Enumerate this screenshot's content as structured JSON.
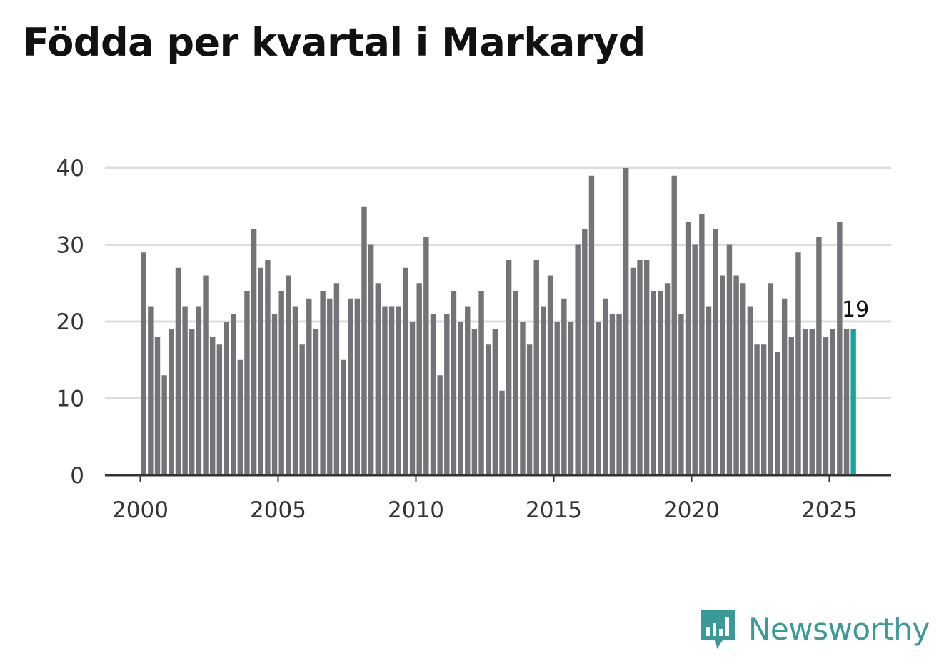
{
  "title": "Födda per kvartal i Markaryd",
  "brand": {
    "name": "Newsworthy",
    "icon": "bar-chart-speech-bubble-icon",
    "color": "#3a9a97"
  },
  "colors": {
    "bar": "#747378",
    "highlight": "#1aa39b",
    "grid": "#dddddd",
    "axis": "#333333"
  },
  "chart_data": {
    "type": "bar",
    "title": "Födda per kvartal i Markaryd",
    "xlabel": "",
    "ylabel": "",
    "ylim": [
      0,
      40
    ],
    "yticks": [
      0,
      10,
      20,
      30,
      40
    ],
    "xticks": [
      2000,
      2005,
      2010,
      2015,
      2020,
      2025
    ],
    "x_start": 2000,
    "periods_per_year": 4,
    "grid": true,
    "values": [
      29,
      22,
      18,
      13,
      19,
      27,
      22,
      19,
      22,
      26,
      18,
      17,
      20,
      21,
      15,
      24,
      32,
      27,
      28,
      21,
      24,
      26,
      22,
      17,
      23,
      19,
      24,
      23,
      25,
      15,
      23,
      23,
      35,
      30,
      25,
      22,
      22,
      22,
      27,
      20,
      25,
      31,
      21,
      13,
      21,
      24,
      20,
      22,
      19,
      24,
      17,
      19,
      11,
      28,
      24,
      20,
      17,
      28,
      22,
      26,
      20,
      23,
      20,
      30,
      32,
      39,
      20,
      23,
      21,
      21,
      40,
      27,
      28,
      28,
      24,
      24,
      25,
      39,
      21,
      33,
      30,
      34,
      22,
      32,
      26,
      30,
      26,
      25,
      22,
      17,
      17,
      25,
      16,
      23,
      18,
      29,
      19,
      19,
      31,
      18,
      19,
      33,
      19,
      19
    ],
    "highlight_index": 103,
    "annotation": "19"
  }
}
